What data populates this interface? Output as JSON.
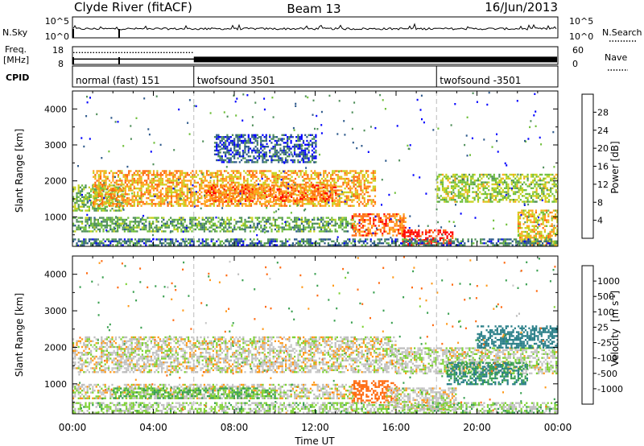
{
  "header": {
    "station": "Clyde River (fitACF)",
    "beam": "Beam 13",
    "date": "16/Jun/2013"
  },
  "noise_panel": {
    "left_label": "N.Sky",
    "right_label": "N.Search",
    "left_ticks": [
      "10^5",
      "10^0"
    ],
    "right_ticks": [
      "10^5",
      "10^0"
    ]
  },
  "freq_panel": {
    "left_label_1": "Freq.",
    "left_label_2": "[MHz]",
    "right_label": "Nave",
    "left_ticks": [
      "18",
      "8"
    ],
    "right_ticks": [
      "60",
      "0"
    ],
    "freq_mhz": 11.0,
    "nave_initial": 40,
    "nave_after_0600": 60
  },
  "cpid_panel": {
    "label": "CPID",
    "modes": [
      {
        "name": "normal (fast) 151",
        "start_hour": 0
      },
      {
        "name": "twofsound 3501",
        "start_hour": 6
      },
      {
        "name": "twofsound -3501",
        "start_hour": 18
      }
    ]
  },
  "colors": {
    "power_scale": [
      "#0000ff",
      "#2e5a8c",
      "#4f8f5a",
      "#6fbf3a",
      "#c8d21e",
      "#ffa51c",
      "#ff6a10",
      "#ff0000"
    ],
    "velocity_scale": [
      "#1a35c8",
      "#2a7f88",
      "#3aa050",
      "#7ed234",
      "#bdbdbd",
      "#c7c7c7",
      "#ff9a1a",
      "#ff6a10",
      "#ff0000"
    ]
  },
  "chart_data": [
    {
      "type": "heatmap",
      "panel": "power",
      "title": "Clyde River (fitACF) Beam 13 16/Jun/2013",
      "xlabel": "Time UT",
      "ylabel": "Slant Range [km]",
      "x_ticks": [
        "00:00",
        "04:00",
        "08:00",
        "12:00",
        "16:00",
        "20:00",
        "00:00"
      ],
      "y_ticks": [
        "1000",
        "2000",
        "3000",
        "4000"
      ],
      "xlim_hours": [
        0,
        24
      ],
      "ylim_km": [
        180,
        4500
      ],
      "colorbar_label": "Power [dB]",
      "colorbar_ticks": [
        "4",
        "8",
        "12",
        "16",
        "20",
        "24",
        "28"
      ],
      "colorbar_range": [
        0,
        32
      ],
      "bands": [
        {
          "start_hour": 0.0,
          "end_hour": 2.5,
          "range_lo_km": 1200,
          "range_hi_km": 1900,
          "power_db": 14
        },
        {
          "start_hour": 1.0,
          "end_hour": 15.0,
          "range_lo_km": 1300,
          "range_hi_km": 2300,
          "power_db": 22
        },
        {
          "start_hour": 6.5,
          "end_hour": 13.0,
          "range_lo_km": 1450,
          "range_hi_km": 1900,
          "power_db": 25
        },
        {
          "start_hour": 0.0,
          "end_hour": 14.0,
          "range_lo_km": 600,
          "range_hi_km": 1000,
          "power_db": 12
        },
        {
          "start_hour": 13.8,
          "end_hour": 16.5,
          "range_lo_km": 500,
          "range_hi_km": 1100,
          "power_db": 25
        },
        {
          "start_hour": 16.3,
          "end_hour": 18.8,
          "range_lo_km": 200,
          "range_hi_km": 650,
          "power_db": 30
        },
        {
          "start_hour": 18.0,
          "end_hour": 24.0,
          "range_lo_km": 1400,
          "range_hi_km": 2200,
          "power_db": 16
        },
        {
          "start_hour": 22.0,
          "end_hour": 24.0,
          "range_lo_km": 200,
          "range_hi_km": 1200,
          "power_db": 20
        },
        {
          "start_hour": 0.0,
          "end_hour": 24.0,
          "range_lo_km": 180,
          "range_hi_km": 400,
          "power_db": 8
        },
        {
          "start_hour": 7.0,
          "end_hour": 12.0,
          "range_lo_km": 2500,
          "range_hi_km": 3300,
          "power_db": 6
        }
      ]
    },
    {
      "type": "heatmap",
      "panel": "velocity",
      "xlabel": "Time UT",
      "ylabel": "Slant Range [km]",
      "x_ticks": [
        "00:00",
        "04:00",
        "08:00",
        "12:00",
        "16:00",
        "20:00",
        "00:00"
      ],
      "y_ticks": [
        "1000",
        "2000",
        "3000",
        "4000"
      ],
      "xlim_hours": [
        0,
        24
      ],
      "ylim_km": [
        180,
        4500
      ],
      "colorbar_label": "Velocity",
      "colorbar_units": "[m s^-1]",
      "colorbar_ticks": [
        "1000",
        "500",
        "100",
        "25",
        "-25",
        "-100",
        "-500",
        "-1000"
      ],
      "bands": [
        {
          "start_hour": 0.0,
          "end_hour": 16.0,
          "range_lo_km": 1300,
          "range_hi_km": 2300,
          "velocity_ms": 0
        },
        {
          "start_hour": 16.0,
          "end_hour": 24.0,
          "range_lo_km": 1300,
          "range_hi_km": 2000,
          "velocity_ms": 10
        },
        {
          "start_hour": 0.0,
          "end_hour": 14.0,
          "range_lo_km": 600,
          "range_hi_km": 1000,
          "velocity_ms": 0
        },
        {
          "start_hour": 2.0,
          "end_hour": 10.0,
          "range_lo_km": 600,
          "range_hi_km": 900,
          "velocity_ms": 60
        },
        {
          "start_hour": 13.8,
          "end_hour": 16.0,
          "range_lo_km": 500,
          "range_hi_km": 1100,
          "velocity_ms": -250
        },
        {
          "start_hour": 15.5,
          "end_hour": 19.0,
          "range_lo_km": 300,
          "range_hi_km": 900,
          "velocity_ms": 0
        },
        {
          "start_hour": 18.5,
          "end_hour": 22.5,
          "range_lo_km": 1000,
          "range_hi_km": 1600,
          "velocity_ms": 300
        },
        {
          "start_hour": 20.0,
          "end_hour": 24.0,
          "range_lo_km": 2000,
          "range_hi_km": 2600,
          "velocity_ms": 700
        },
        {
          "start_hour": 0.0,
          "end_hour": 24.0,
          "range_lo_km": 180,
          "range_hi_km": 500,
          "velocity_ms": 30
        }
      ]
    }
  ]
}
